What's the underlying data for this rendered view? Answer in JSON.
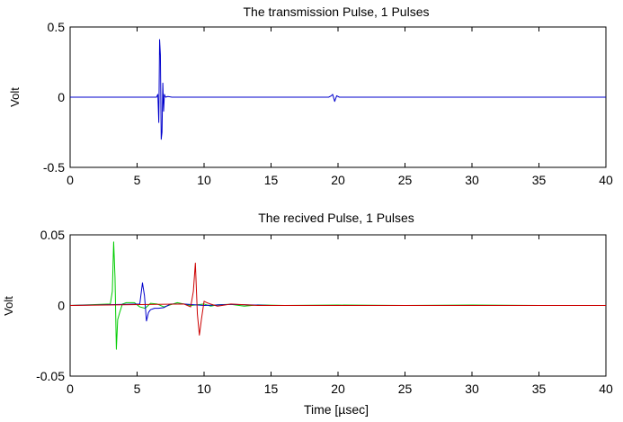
{
  "chart_data": [
    {
      "type": "line",
      "title": "The transmission Pulse, 1 Pulses",
      "xlabel": "",
      "ylabel": "Volt",
      "xlim": [
        0,
        40
      ],
      "ylim": [
        -0.5,
        0.5
      ],
      "xticks": [
        0,
        5,
        10,
        15,
        20,
        25,
        30,
        35,
        40
      ],
      "yticks": [
        -0.5,
        0,
        0.5
      ],
      "xtick_labels": [
        "0",
        "5",
        "10",
        "15",
        "20",
        "25",
        "30",
        "35",
        "40"
      ],
      "ytick_labels": [
        "-0.5",
        "0",
        "0.5"
      ],
      "grid": false,
      "series": [
        {
          "color": "#0000cc",
          "x": [
            0,
            6.45,
            6.55,
            6.62,
            6.68,
            6.74,
            6.8,
            6.86,
            6.92,
            6.98,
            7.04,
            7.12,
            7.3,
            7.6,
            19.3,
            19.5,
            19.6,
            19.75,
            19.9,
            20.1,
            40
          ],
          "y": [
            0,
            0,
            0.02,
            -0.18,
            0.41,
            0.3,
            -0.3,
            -0.25,
            0.1,
            -0.1,
            0.02,
            0,
            0.005,
            0,
            0,
            0.01,
            0.02,
            -0.03,
            0.01,
            0,
            0
          ]
        }
      ]
    },
    {
      "type": "line",
      "title": "The recived Pulse, 1 Pulses",
      "xlabel": "Time [µsec]",
      "ylabel": "Volt",
      "xlim": [
        0,
        40
      ],
      "ylim": [
        -0.05,
        0.05
      ],
      "xticks": [
        0,
        5,
        10,
        15,
        20,
        25,
        30,
        35,
        40
      ],
      "yticks": [
        -0.05,
        0,
        0.05
      ],
      "xtick_labels": [
        "0",
        "5",
        "10",
        "15",
        "20",
        "25",
        "30",
        "35",
        "40"
      ],
      "ytick_labels": [
        "-0.05",
        "0",
        "0.05"
      ],
      "grid": false,
      "series": [
        {
          "color": "#00cc00",
          "x": [
            0,
            3.0,
            3.15,
            3.25,
            3.35,
            3.45,
            3.55,
            3.7,
            3.9,
            4.2,
            4.8,
            5.2,
            5.6,
            6.0,
            6.5,
            7.0,
            8.0,
            9.0,
            10.0,
            10.5,
            11.0,
            12.0,
            13.0,
            14.0,
            16.0,
            20.0,
            25.0,
            30.0,
            35.0,
            40.0
          ],
          "y": [
            0,
            0.001,
            0.01,
            0.045,
            0.02,
            -0.031,
            -0.01,
            -0.005,
            0.001,
            0.002,
            0.002,
            -0.001,
            -0.002,
            0.0015,
            0.001,
            -0.001,
            0.002,
            0,
            0.001,
            -0.0005,
            0.0005,
            0.0008,
            -0.0005,
            0.0004,
            0,
            0.0003,
            0,
            0.0003,
            0,
            0
          ]
        },
        {
          "color": "#0000cc",
          "x": [
            0,
            5.2,
            5.4,
            5.55,
            5.7,
            5.85,
            6.0,
            6.3,
            6.6,
            7.0,
            7.5,
            8.5,
            10.0,
            12.0,
            15.0,
            40.0
          ],
          "y": [
            0,
            0.001,
            0.016,
            0.007,
            -0.011,
            -0.005,
            -0.003,
            -0.002,
            -0.002,
            -0.0015,
            0.001,
            0.001,
            0,
            0.0008,
            0,
            0
          ]
        },
        {
          "color": "#cc0000",
          "x": [
            0,
            8.5,
            9.0,
            9.2,
            9.35,
            9.5,
            9.65,
            9.8,
            10.0,
            10.2,
            10.5,
            11.0,
            12.0,
            14.0,
            18.0,
            40.0
          ],
          "y": [
            0,
            0.001,
            -0.001,
            0.01,
            0.03,
            -0.006,
            -0.021,
            -0.01,
            0.003,
            0.002,
            0.001,
            -0.0005,
            0.001,
            0,
            0,
            0
          ]
        }
      ]
    }
  ]
}
